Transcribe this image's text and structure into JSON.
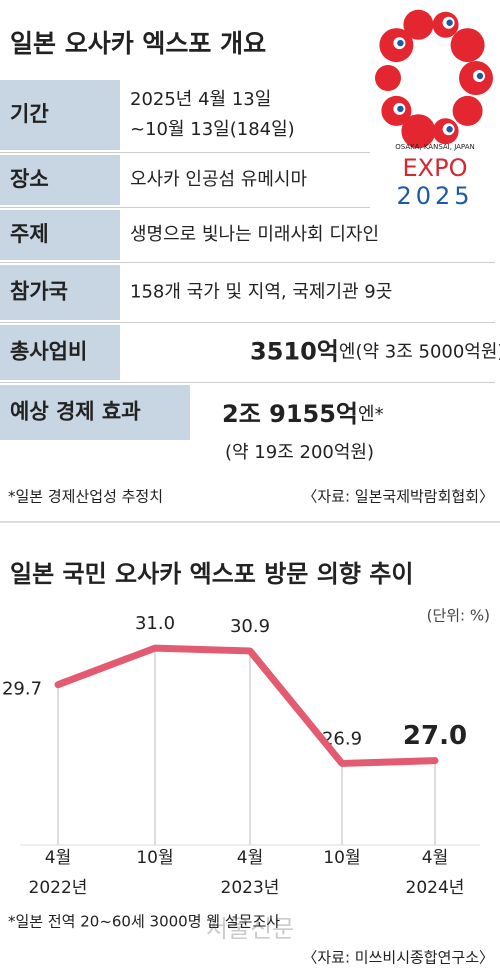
{
  "header": {
    "title": "일본 오사카 엑스포 개요"
  },
  "logo": {
    "caption": "OSAKA, KANSAI, JAPAN",
    "name": "EXPO",
    "year": "2025"
  },
  "table": {
    "rows": [
      {
        "label": "기간",
        "lines": [
          [
            {
              "text": "2025년 4월 13일"
            }
          ],
          [
            {
              "text": "~10월 13일(184일)"
            }
          ]
        ]
      },
      {
        "label": "장소",
        "lines": [
          [
            {
              "text": "오사카 인공섬 유메시마"
            }
          ]
        ]
      },
      {
        "label": "주제",
        "lines": [
          [
            {
              "text": "생명으로 빛나는 미래사회 디자인"
            }
          ]
        ]
      },
      {
        "label": "참가국",
        "lines": [
          [
            {
              "text": "158개 국가 및 지역, 국제기관 9곳"
            }
          ]
        ]
      },
      {
        "label": "총사업비",
        "lines": [
          [
            {
              "text": "3510억",
              "strong": true
            },
            {
              "text": "엔(약 3조 5000억원)"
            }
          ]
        ]
      },
      {
        "label": "예상 경제 효과",
        "lines": [
          [
            {
              "text": "2조 9155억",
              "strong": true
            },
            {
              "text": "엔*"
            }
          ],
          [
            {
              "text": "(약 19조 200억원)"
            }
          ]
        ]
      }
    ],
    "note": "*일본 경제산업성 추정치",
    "source": "〈자료: 일본국제박람회협회〉"
  },
  "chart_data": {
    "type": "line",
    "title": "일본 국민 오사카 엑스포 방문 의향 추이",
    "unit": "(단위: %)",
    "categories": [
      "4월",
      "10월",
      "4월",
      "10월",
      "4월"
    ],
    "years": [
      "2022년",
      null,
      "2023년",
      null,
      "2024년"
    ],
    "values": [
      29.7,
      31.0,
      30.9,
      26.9,
      27.0
    ],
    "value_labels": [
      "29.7",
      "31.0",
      "30.9",
      "26.9",
      "27.0"
    ],
    "ylim": [
      24,
      32
    ],
    "color": "#e35b70",
    "note": "*일본 전역 20~60세 3000명 웹 설문조사",
    "source": "〈자료: 미쓰비시종합연구소〉"
  },
  "watermark": "서울신문"
}
